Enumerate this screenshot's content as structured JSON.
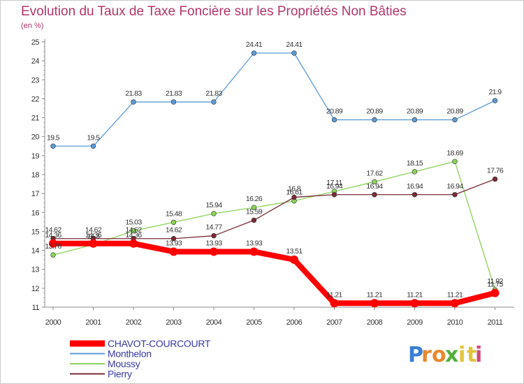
{
  "chart_data": {
    "type": "line",
    "title": "Evolution du Taux de Taxe Foncière sur les Propriétés Non Bâties",
    "subtitle": "(en %)",
    "xlabel": "",
    "ylabel": "",
    "x": [
      "2000",
      "2001",
      "2002",
      "2003",
      "2004",
      "2005",
      "2006",
      "2007",
      "2008",
      "2009",
      "2010",
      "2011"
    ],
    "ylim": [
      11,
      25
    ],
    "yticks": [
      11,
      12,
      13,
      14,
      15,
      16,
      17,
      18,
      19,
      20,
      21,
      22,
      23,
      24,
      25
    ],
    "grid": false,
    "legend_position": "bottom-left",
    "series": [
      {
        "name": "CHAVOT-COURCOURT",
        "color": "#ff0000",
        "thickness": "thick",
        "values": [
          14.36,
          14.36,
          14.36,
          13.93,
          13.93,
          13.93,
          13.51,
          11.21,
          11.21,
          11.21,
          11.21,
          11.75
        ],
        "labels": [
          "14.36",
          "14.36",
          "14.36",
          "13.93",
          "13.93",
          "13.93",
          "13.51",
          "11.21",
          "11.21",
          "11.21",
          "11.21",
          "11.75"
        ]
      },
      {
        "name": "Monthelon",
        "color": "#5b9bd5",
        "thickness": "thin",
        "values": [
          19.5,
          19.5,
          21.83,
          21.83,
          21.83,
          24.41,
          24.41,
          20.89,
          20.89,
          20.89,
          20.89,
          21.9
        ],
        "labels": [
          "19.5",
          "19.5",
          "21.83",
          "21.83",
          "21.83",
          "24.41",
          "24.41",
          "20.89",
          "20.89",
          "20.89",
          "20.89",
          "21.9"
        ]
      },
      {
        "name": "Moussy",
        "color": "#8bd35a",
        "thickness": "thin",
        "values": [
          13.76,
          14.3,
          15.03,
          15.48,
          15.94,
          16.26,
          16.61,
          17.11,
          17.62,
          18.15,
          18.69,
          11.92
        ],
        "labels": [
          "13.76",
          "14.3",
          "15.03",
          "15.48",
          "15.94",
          "16.26",
          "16.61",
          "17.11",
          "17.62",
          "18.15",
          "18.69",
          "11.92"
        ]
      },
      {
        "name": "Pierry",
        "color": "#7a2a35",
        "thickness": "thin",
        "values": [
          14.62,
          14.62,
          14.62,
          14.62,
          14.77,
          15.59,
          16.8,
          16.94,
          16.94,
          16.94,
          16.94,
          17.76
        ],
        "labels": [
          "14.62",
          "14.62",
          "14.62",
          "14.62",
          "14.77",
          "15.59",
          "16.8",
          "16.94",
          "16.94",
          "16.94",
          "16.94",
          "17.76"
        ]
      }
    ]
  },
  "logo": {
    "letters": [
      "P",
      "r",
      "o",
      "x",
      "i",
      "t",
      "i"
    ],
    "colors": [
      "#3a7fd5",
      "#e8892c",
      "#e8892c",
      "#4fb03a",
      "#e2c43a",
      "#e2c43a",
      "#d14a7a"
    ]
  }
}
